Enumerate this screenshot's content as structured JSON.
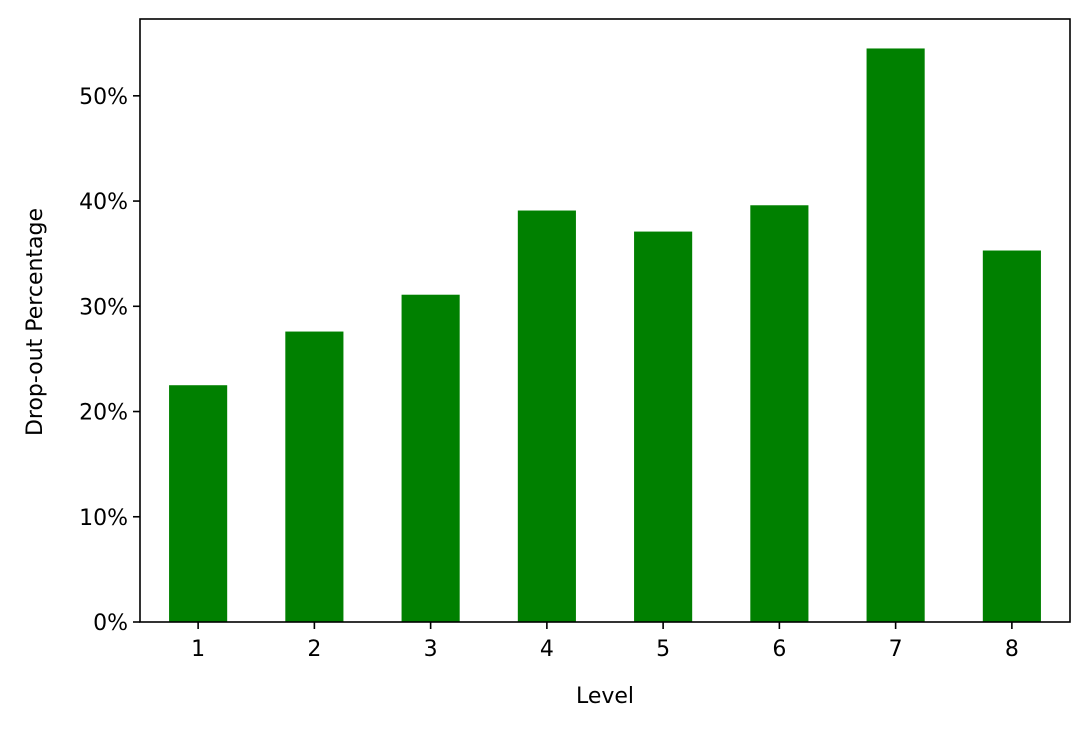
{
  "chart_data": {
    "type": "bar",
    "title": "",
    "xlabel": "Level",
    "ylabel": "Drop-out Percentage",
    "categories": [
      "1",
      "2",
      "3",
      "4",
      "5",
      "6",
      "7",
      "8"
    ],
    "values": [
      22.5,
      27.6,
      31.1,
      39.1,
      37.1,
      39.6,
      54.5,
      35.3
    ],
    "ylim": [
      0,
      57.3
    ],
    "yticks": [
      0,
      10,
      20,
      30,
      40,
      50
    ],
    "ytick_labels": [
      "0%",
      "10%",
      "20%",
      "30%",
      "40%",
      "50%"
    ],
    "bar_color": "#008000",
    "grid": false,
    "legend": "none"
  }
}
